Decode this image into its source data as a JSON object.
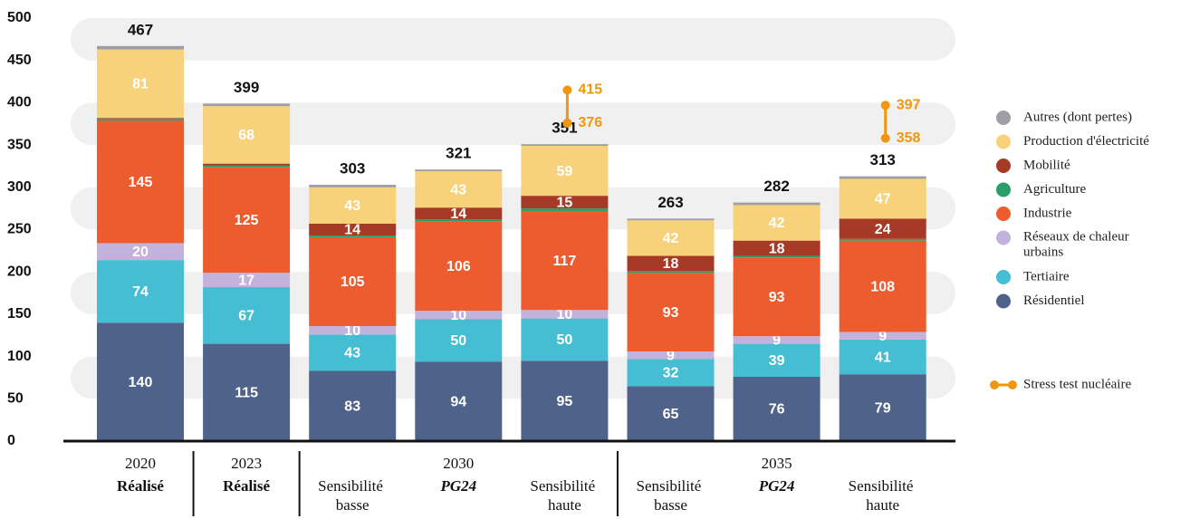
{
  "chart_data": {
    "type": "stacked_bar",
    "categories": [
      "Réalisé",
      "Réalisé",
      "Sensibilité basse",
      "PG24",
      "Sensibilité haute",
      "Sensibilité basse",
      "PG24",
      "Sensibilité haute"
    ],
    "groups": [
      {
        "label": "2020",
        "size": 1
      },
      {
        "label": "2023",
        "size": 1
      },
      {
        "label": "2030",
        "size": 3
      },
      {
        "label": "2035",
        "size": 3
      }
    ],
    "series": [
      {
        "name": "Résidentiel",
        "color": "#4f6289",
        "values": [
          140,
          115,
          83,
          94,
          95,
          65,
          76,
          79
        ]
      },
      {
        "name": "Tertiaire",
        "color": "#45bdd3",
        "values": [
          74,
          67,
          43,
          50,
          50,
          32,
          39,
          41
        ]
      },
      {
        "name": "Réseaux de chaleur urbains",
        "color": "#c3b3dc",
        "values": [
          20,
          17,
          10,
          10,
          10,
          9,
          9,
          9
        ]
      },
      {
        "name": "Industrie",
        "color": "#ec5c2f",
        "values": [
          145,
          125,
          105,
          106,
          117,
          93,
          93,
          108
        ]
      },
      {
        "name": "Agriculture",
        "color": "#2a9e6a",
        "values": [
          2,
          2,
          2,
          2,
          3,
          2,
          2,
          2
        ]
      },
      {
        "name": "Mobilité",
        "color": "#a63a26",
        "values": [
          1,
          2,
          14,
          14,
          15,
          18,
          18,
          24
        ]
      },
      {
        "name": "Production d'électricité",
        "color": "#f7d27a",
        "values": [
          81,
          68,
          43,
          43,
          59,
          42,
          42,
          47
        ]
      },
      {
        "name": "Autres (dont pertes)",
        "color": "#9e9ea6",
        "values": [
          4,
          3,
          3,
          2,
          2,
          2,
          3,
          3
        ]
      }
    ],
    "totals": [
      467,
      399,
      303,
      321,
      351,
      263,
      282,
      313
    ],
    "stress_test": {
      "name": "Stress test nucléaire",
      "color": "#f0960f",
      "high": [
        null,
        null,
        null,
        null,
        415,
        null,
        null,
        397
      ],
      "low": [
        null,
        null,
        null,
        null,
        376,
        null,
        null,
        358
      ]
    },
    "ylim": [
      0,
      500
    ],
    "yticks": [
      0,
      50,
      100,
      150,
      200,
      250,
      300,
      350,
      400,
      450,
      500
    ],
    "grid": "bands"
  }
}
